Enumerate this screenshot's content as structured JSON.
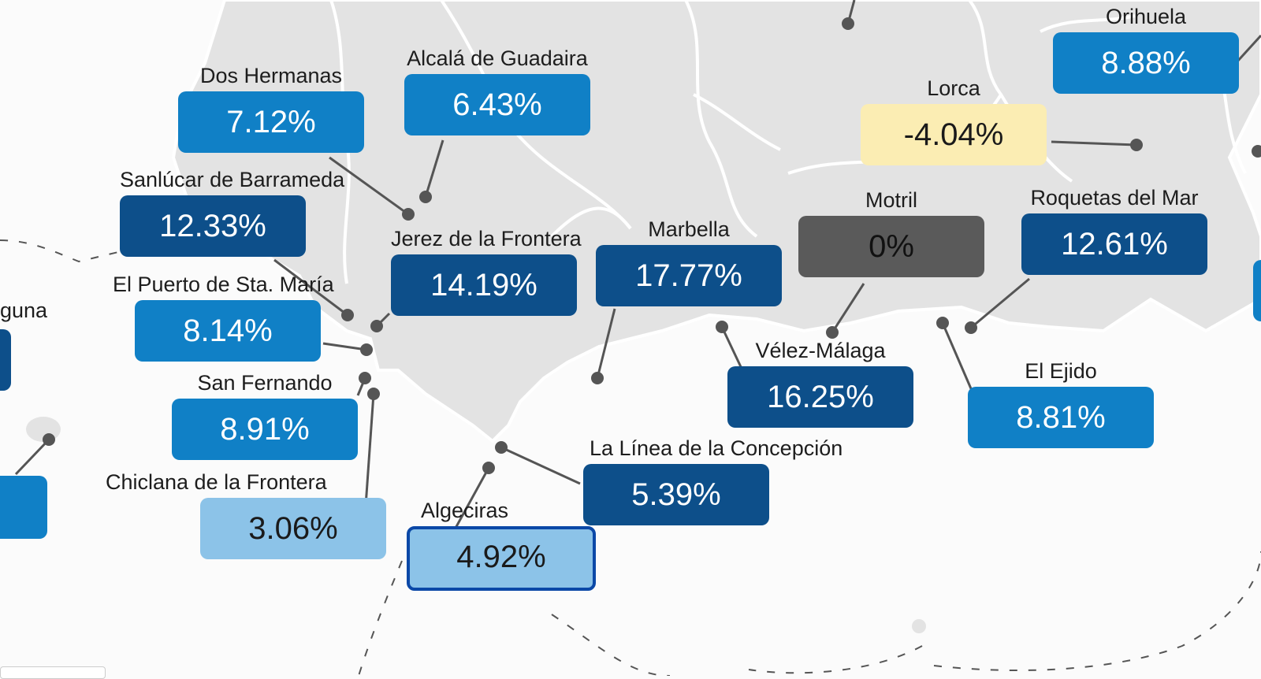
{
  "legend_colors": {
    "dark": "#0d4f8a",
    "mid": "#1080c6",
    "light": "#8cc3e8",
    "negative": "#fbedb3",
    "zero": "#5a5a5a",
    "selected_border": "#0b48a7"
  },
  "cut_off_label": "guna",
  "cities": [
    {
      "name": "Orihuela",
      "value": "8.88%"
    },
    {
      "name": "Dos Hermanas",
      "value": "7.12%"
    },
    {
      "name": "Alcalá de Guadaira",
      "value": "6.43%"
    },
    {
      "name": "Lorca",
      "value": "-4.04%"
    },
    {
      "name": "Sanlúcar de Barrameda",
      "value": "12.33%"
    },
    {
      "name": "Motril",
      "value": "0%"
    },
    {
      "name": "Roquetas del Mar",
      "value": "12.61%"
    },
    {
      "name": "Jerez de la Frontera",
      "value": "14.19%"
    },
    {
      "name": "Marbella",
      "value": "17.77%"
    },
    {
      "name": "El Puerto de Sta. María",
      "value": "8.14%"
    },
    {
      "name": "Vélez-Málaga",
      "value": "16.25%"
    },
    {
      "name": "El Ejido",
      "value": "8.81%"
    },
    {
      "name": "San Fernando",
      "value": "8.91%"
    },
    {
      "name": "La Línea de la Concepción",
      "value": "5.39%"
    },
    {
      "name": "Chiclana de la Frontera",
      "value": "3.06%"
    },
    {
      "name": "Algeciras",
      "value": "4.92%"
    }
  ]
}
